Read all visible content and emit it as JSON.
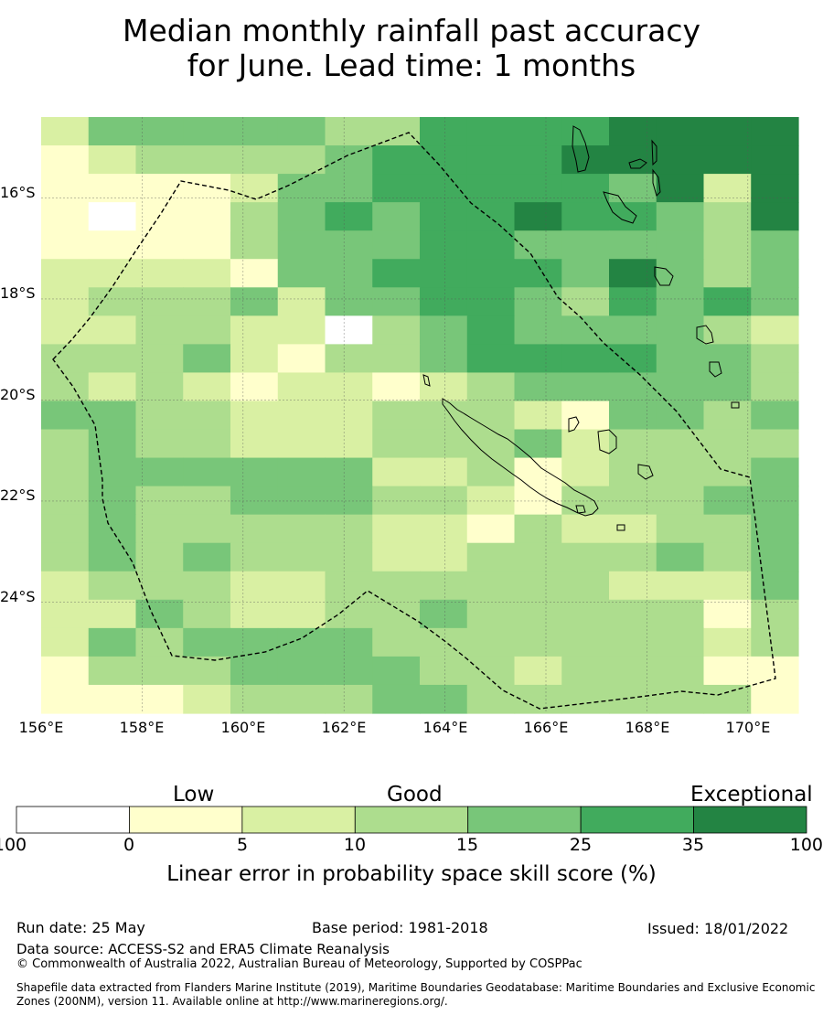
{
  "title": {
    "line1": "Median monthly rainfall past accuracy",
    "line2": "for June. Lead time: 1 months"
  },
  "map": {
    "lon_range": [
      156.0,
      171.0
    ],
    "lat_range": [
      -26.2,
      -14.4
    ],
    "lat_labels": [
      "16°S",
      "18°S",
      "20°S",
      "22°S",
      "24°S"
    ],
    "lon_labels": [
      "156°E",
      "158°E",
      "160°E",
      "162°E",
      "164°E",
      "166°E",
      "168°E",
      "170°E"
    ],
    "grid_cells": [
      "2444443355556666",
      "1233334555566666",
      "1111244555554626",
      "1011345455655436",
      "1111344455444434",
      "2222144555546434",
      "2333424455435454",
      "2233220345444432",
      "3334213345555443",
      "3232122123444443",
      "4433222333214434",
      "3433222333423333",
      "3444444223123334",
      "3433444332133344",
      "3433333221322334",
      "3434333223333434",
      "2333223333332224",
      "2243223343333313",
      "2434444333333323",
      "1333444433233311",
      "1112333443333331"
    ]
  },
  "legend": {
    "category_labels": [
      "Low",
      "Good",
      "Exceptional"
    ],
    "bins": [
      {
        "from": -100,
        "to": 0,
        "color": "#ffffff"
      },
      {
        "from": 0,
        "to": 5,
        "color": "#ffffcc"
      },
      {
        "from": 5,
        "to": 10,
        "color": "#d9f0a3"
      },
      {
        "from": 10,
        "to": 15,
        "color": "#addd8e"
      },
      {
        "from": 15,
        "to": 25,
        "color": "#78c679"
      },
      {
        "from": 25,
        "to": 35,
        "color": "#41ab5d"
      },
      {
        "from": 35,
        "to": 100,
        "color": "#238443"
      }
    ],
    "tick_labels": [
      "-100",
      "0",
      "5",
      "10",
      "15",
      "25",
      "35",
      "100"
    ],
    "title": "Linear error in probability space skill score (%)"
  },
  "footer": {
    "run_date": "Run date: 25 May",
    "base_period": "Base period: 1981-2018",
    "issued": "Issued: 18/01/2022",
    "data_source": "Data source: ACCESS-S2 and ERA5 Climate Reanalysis",
    "copyright": "© Commonwealth of Australia 2022, Australian Bureau of Meteorology, Supported by COSPPac",
    "shapefile_credit": "Shapefile data extracted from Flanders Marine Institute (2019), Maritime Boundaries Geodatabase: Maritime Boundaries and Exclusive Economic Zones (200NM), version 11. Available online at http://www.marineregions.org/."
  }
}
